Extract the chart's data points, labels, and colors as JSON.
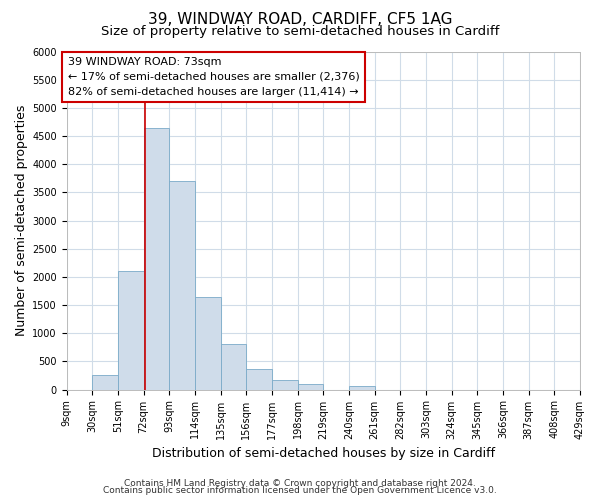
{
  "title": "39, WINDWAY ROAD, CARDIFF, CF5 1AG",
  "subtitle": "Size of property relative to semi-detached houses in Cardiff",
  "xlabel": "Distribution of semi-detached houses by size in Cardiff",
  "ylabel": "Number of semi-detached properties",
  "bar_values": [
    0,
    250,
    2100,
    4650,
    3700,
    1650,
    800,
    370,
    175,
    90,
    0,
    60,
    0,
    0,
    0,
    0,
    0,
    0,
    0,
    0
  ],
  "bin_labels": [
    "9sqm",
    "30sqm",
    "51sqm",
    "72sqm",
    "93sqm",
    "114sqm",
    "135sqm",
    "156sqm",
    "177sqm",
    "198sqm",
    "219sqm",
    "240sqm",
    "261sqm",
    "282sqm",
    "303sqm",
    "324sqm",
    "345sqm",
    "366sqm",
    "387sqm",
    "408sqm",
    "429sqm"
  ],
  "bin_edges": [
    9,
    30,
    51,
    72,
    93,
    114,
    135,
    156,
    177,
    198,
    219,
    240,
    261,
    282,
    303,
    324,
    345,
    366,
    387,
    408,
    429
  ],
  "property_size": 73,
  "bar_color": "#cfdcea",
  "bar_edge_color": "#7aaac8",
  "vline_color": "#cc0000",
  "annotation_box_color": "#cc0000",
  "annotation_line1": "39 WINDWAY ROAD: 73sqm",
  "annotation_line2": "← 17% of semi-detached houses are smaller (2,376)",
  "annotation_line3": "82% of semi-detached houses are larger (11,414) →",
  "ylim": [
    0,
    6000
  ],
  "yticks": [
    0,
    500,
    1000,
    1500,
    2000,
    2500,
    3000,
    3500,
    4000,
    4500,
    5000,
    5500,
    6000
  ],
  "footer1": "Contains HM Land Registry data © Crown copyright and database right 2024.",
  "footer2": "Contains public sector information licensed under the Open Government Licence v3.0.",
  "background_color": "#ffffff",
  "grid_color": "#d0dce8",
  "title_fontsize": 11,
  "subtitle_fontsize": 9.5,
  "annotation_fontsize": 8.0,
  "axis_label_fontsize": 9,
  "tick_fontsize": 7,
  "footer_fontsize": 6.5
}
